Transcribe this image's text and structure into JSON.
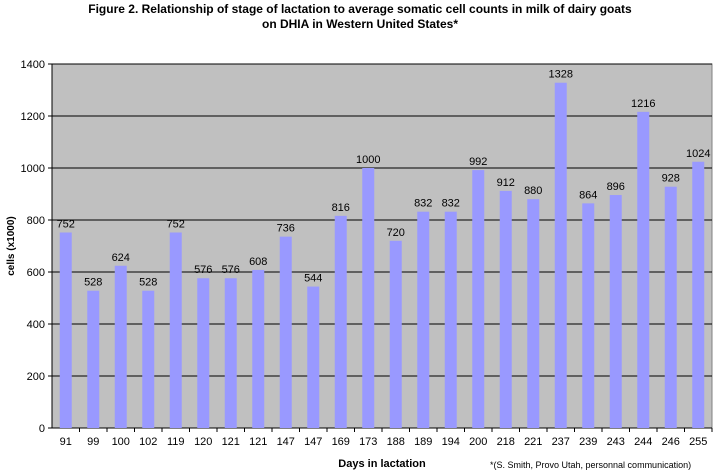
{
  "chart_data": {
    "type": "bar",
    "title_line1": "Figure 2. Relationship of stage of lactation to average somatic cell counts in milk of dairy goats",
    "title_line2": "on DHIA in Western United States*",
    "xlabel": "Days in lactation",
    "ylabel": "cells (x1000)",
    "ylim": [
      0,
      1400
    ],
    "yticks": [
      0,
      200,
      400,
      600,
      800,
      1000,
      1200,
      1400
    ],
    "grid": true,
    "categories": [
      "91",
      "99",
      "100",
      "102",
      "119",
      "120",
      "121",
      "121",
      "147",
      "147",
      "169",
      "173",
      "188",
      "189",
      "194",
      "200",
      "218",
      "221",
      "237",
      "239",
      "243",
      "244",
      "246",
      "255"
    ],
    "values": [
      752,
      528,
      624,
      528,
      752,
      576,
      576,
      608,
      736,
      544,
      816,
      1000,
      720,
      832,
      832,
      992,
      912,
      880,
      1328,
      864,
      896,
      1216,
      928,
      1024
    ],
    "footnote": "*(S. Smith, Provo Utah, personnal communication)",
    "colors": {
      "bar": "#9999ff",
      "plot_bg": "#c0c0c0",
      "grid": "#000000"
    }
  }
}
